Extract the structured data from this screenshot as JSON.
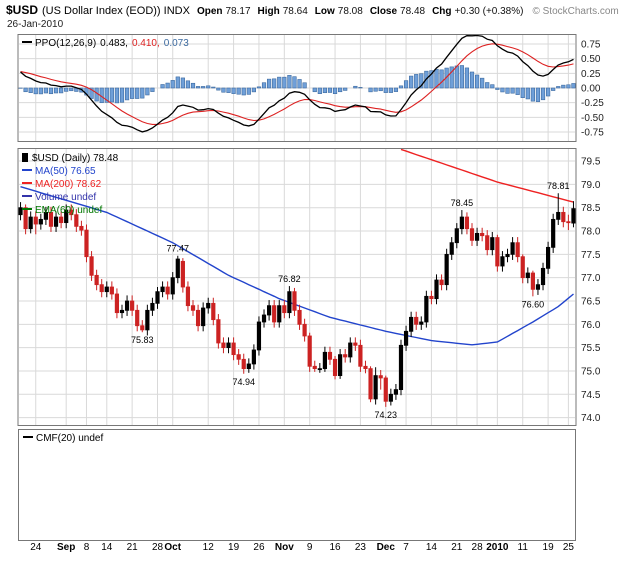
{
  "header": {
    "symbol": "$USD",
    "title_rest": "(US Dollar Index (EOD)) INDX",
    "date": "26-Jan-2010",
    "copyright": "© StockCharts.com",
    "quote": [
      {
        "label": "Open",
        "value": "78.17"
      },
      {
        "label": "High",
        "value": "78.64"
      },
      {
        "label": "Low",
        "value": "78.08"
      },
      {
        "label": "Close",
        "value": "78.48"
      },
      {
        "label": "Chg",
        "value": "+0.30 (+0.38%)"
      }
    ]
  },
  "ppo_panel": {
    "legend_parts": [
      {
        "text": "PPO(12,26,9)",
        "color": "#000000",
        "swatch": true
      },
      {
        "text": "0.483,",
        "color": "#000000"
      },
      {
        "text": "0.410,",
        "color": "#dd2222"
      },
      {
        "text": "0.073",
        "color": "#3c6aa0"
      }
    ],
    "y_labels": [
      "0.75",
      "0.50",
      "0.25",
      "0.00",
      "-0.25",
      "-0.50",
      "-0.75"
    ]
  },
  "price_panel": {
    "legend": [
      {
        "text": "$USD (Daily) 78.48",
        "color": "#000000",
        "swatch": "candle"
      },
      {
        "text": "MA(50) 76.65",
        "color": "#2244cc",
        "swatch": "line"
      },
      {
        "text": "MA(200) 78.62",
        "color": "#ee2222",
        "swatch": "line"
      },
      {
        "text": "Volume undef",
        "color": "#3333aa",
        "swatch": "line"
      },
      {
        "text": "EMA(60) undef",
        "color": "#007700",
        "swatch": "line"
      }
    ],
    "y_labels": [
      "79.5",
      "79.0",
      "78.5",
      "78.0",
      "77.5",
      "77.0",
      "76.5",
      "76.0",
      "75.5",
      "75.0",
      "74.5",
      "74.0"
    ]
  },
  "cmf_panel": {
    "legend": {
      "text": "CMF(20) undef",
      "color": "#000000"
    }
  },
  "x_axis": {
    "ticks": [
      {
        "label": "24",
        "index": 3
      },
      {
        "label": "Sep",
        "index": 9,
        "bold": true
      },
      {
        "label": "8",
        "index": 13
      },
      {
        "label": "14",
        "index": 17
      },
      {
        "label": "21",
        "index": 22
      },
      {
        "label": "28",
        "index": 27
      },
      {
        "label": "Oct",
        "index": 30,
        "bold": true
      },
      {
        "label": "12",
        "index": 37
      },
      {
        "label": "19",
        "index": 42
      },
      {
        "label": "26",
        "index": 47
      },
      {
        "label": "Nov",
        "index": 52,
        "bold": true
      },
      {
        "label": "9",
        "index": 57
      },
      {
        "label": "16",
        "index": 62
      },
      {
        "label": "23",
        "index": 67
      },
      {
        "label": "Dec",
        "index": 72,
        "bold": true
      },
      {
        "label": "7",
        "index": 76
      },
      {
        "label": "14",
        "index": 81
      },
      {
        "label": "21",
        "index": 86
      },
      {
        "label": "28",
        "index": 90
      },
      {
        "label": "2010",
        "index": 94,
        "bold": true
      },
      {
        "label": "11",
        "index": 99
      },
      {
        "label": "19",
        "index": 104
      },
      {
        "label": "25",
        "index": 108
      }
    ]
  },
  "colors": {
    "up_candle": "#000000",
    "down_candle": "#cc2222",
    "ma50": "#2244cc",
    "ma200": "#ee2222",
    "ppo_line": "#000000",
    "ppo_signal": "#dd2222",
    "hist_fill": "#6f9fd8",
    "hist_stroke": "#3c6aa0",
    "volume_legend": "#3333aa",
    "ema60_legend": "#007700",
    "grid": "#d9d9d9",
    "panel_border": "#777777",
    "axis_text": "#222222",
    "copyright_text": "#888888",
    "annotation_text": "#000000"
  },
  "chart_data": [
    {
      "id": "ppo",
      "type": "line",
      "title": "PPO(12,26,9)",
      "params": {
        "fast": 12,
        "slow": 26,
        "signal": 9
      },
      "note": "PPO line (black), signal line (red) and histogram (blue bars) are derived in the renderer from the candle closes of the price chart below",
      "visible_end_values": {
        "ppo": 0.483,
        "signal": 0.41,
        "histogram": 0.073
      },
      "ylim": [
        -0.92,
        0.92
      ],
      "yticks": [
        0.75,
        0.5,
        0.25,
        0,
        -0.25,
        -0.5,
        -0.75
      ],
      "legend_position": "top-left",
      "grid": true
    },
    {
      "id": "price",
      "type": "candlestick",
      "title": "$USD (Daily)",
      "last_close": 78.48,
      "ylim": [
        73.82,
        79.78
      ],
      "yticks": [
        79.5,
        79.0,
        78.5,
        78.0,
        77.5,
        77.0,
        76.5,
        76.0,
        75.5,
        75.0,
        74.5,
        74.0
      ],
      "grid": true,
      "legend_position": "top-left",
      "dates": [
        "08-19",
        "08-20",
        "08-21",
        "08-24",
        "08-25",
        "08-26",
        "08-27",
        "08-28",
        "08-31",
        "09-01",
        "09-02",
        "09-03",
        "09-04",
        "09-08",
        "09-09",
        "09-10",
        "09-11",
        "09-14",
        "09-15",
        "09-16",
        "09-17",
        "09-18",
        "09-21",
        "09-22",
        "09-23",
        "09-24",
        "09-25",
        "09-28",
        "09-29",
        "09-30",
        "10-01",
        "10-02",
        "10-05",
        "10-06",
        "10-07",
        "10-08",
        "10-09",
        "10-12",
        "10-13",
        "10-14",
        "10-15",
        "10-16",
        "10-19",
        "10-20",
        "10-21",
        "10-22",
        "10-23",
        "10-26",
        "10-27",
        "10-28",
        "10-29",
        "10-30",
        "11-02",
        "11-03",
        "11-04",
        "11-05",
        "11-06",
        "11-09",
        "11-10",
        "11-11",
        "11-12",
        "11-13",
        "11-16",
        "11-17",
        "11-18",
        "11-19",
        "11-20",
        "11-23",
        "11-24",
        "11-25",
        "11-27",
        "11-30",
        "12-01",
        "12-02",
        "12-03",
        "12-04",
        "12-07",
        "12-08",
        "12-09",
        "12-10",
        "12-11",
        "12-14",
        "12-15",
        "12-16",
        "12-17",
        "12-18",
        "12-21",
        "12-22",
        "12-23",
        "12-24",
        "12-28",
        "12-29",
        "12-30",
        "12-31",
        "01-04",
        "01-05",
        "01-06",
        "01-07",
        "01-08",
        "01-11",
        "01-12",
        "01-13",
        "01-14",
        "01-15",
        "01-19",
        "01-20",
        "01-21",
        "01-22",
        "01-25",
        "01-26"
      ],
      "ohlc": [
        [
          78.35,
          78.62,
          78.23,
          78.5
        ],
        [
          78.5,
          78.57,
          77.93,
          78.05
        ],
        [
          78.05,
          78.42,
          77.95,
          78.3
        ],
        [
          78.3,
          78.42,
          77.93,
          78.15
        ],
        [
          78.15,
          78.37,
          78.03,
          78.25
        ],
        [
          78.25,
          78.52,
          78.13,
          78.4
        ],
        [
          78.4,
          78.52,
          77.98,
          78.1
        ],
        [
          78.1,
          78.42,
          77.98,
          78.3
        ],
        [
          78.3,
          78.42,
          78.06,
          78.18
        ],
        [
          78.18,
          78.57,
          78.06,
          78.45
        ],
        [
          78.45,
          78.57,
          78.23,
          78.35
        ],
        [
          78.35,
          78.47,
          77.98,
          78.1
        ],
        [
          78.1,
          78.22,
          77.9,
          78.02
        ],
        [
          78.02,
          78.14,
          77.33,
          77.45
        ],
        [
          77.45,
          77.57,
          76.93,
          77.05
        ],
        [
          77.05,
          77.17,
          76.73,
          76.85
        ],
        [
          76.85,
          76.97,
          76.58,
          76.7
        ],
        [
          76.7,
          76.92,
          76.58,
          76.8
        ],
        [
          76.8,
          76.92,
          76.53,
          76.65
        ],
        [
          76.65,
          76.77,
          76.13,
          76.25
        ],
        [
          76.25,
          76.42,
          76.13,
          76.3
        ],
        [
          76.3,
          76.62,
          76.18,
          76.5
        ],
        [
          76.5,
          76.62,
          76.18,
          76.3
        ],
        [
          76.3,
          76.42,
          75.85,
          75.97
        ],
        [
          75.97,
          76.09,
          75.83,
          75.88
        ],
        [
          75.88,
          76.42,
          75.76,
          76.3
        ],
        [
          76.3,
          76.57,
          76.18,
          76.45
        ],
        [
          76.45,
          76.8,
          76.33,
          76.7
        ],
        [
          76.7,
          76.92,
          76.58,
          76.8
        ],
        [
          76.8,
          76.92,
          76.53,
          76.65
        ],
        [
          76.65,
          77.12,
          76.53,
          77.0
        ],
        [
          77.0,
          77.47,
          76.88,
          77.4
        ],
        [
          77.35,
          77.42,
          76.68,
          76.8
        ],
        [
          76.8,
          76.92,
          76.28,
          76.4
        ],
        [
          76.4,
          76.52,
          76.18,
          76.3
        ],
        [
          76.3,
          76.42,
          75.85,
          75.97
        ],
        [
          75.97,
          76.47,
          75.85,
          76.35
        ],
        [
          76.35,
          76.57,
          76.23,
          76.45
        ],
        [
          76.45,
          76.57,
          75.98,
          76.1
        ],
        [
          76.1,
          76.22,
          75.48,
          75.6
        ],
        [
          75.6,
          75.72,
          75.38,
          75.5
        ],
        [
          75.5,
          75.72,
          75.38,
          75.6
        ],
        [
          75.6,
          75.72,
          75.23,
          75.35
        ],
        [
          75.35,
          75.47,
          75.13,
          75.25
        ],
        [
          75.25,
          75.37,
          74.94,
          75.05
        ],
        [
          75.05,
          75.27,
          74.96,
          75.15
        ],
        [
          75.15,
          75.57,
          75.03,
          75.45
        ],
        [
          75.45,
          76.17,
          75.33,
          76.05
        ],
        [
          76.05,
          76.32,
          75.93,
          76.2
        ],
        [
          76.2,
          76.52,
          76.08,
          76.4
        ],
        [
          76.4,
          76.52,
          75.93,
          76.05
        ],
        [
          76.05,
          76.52,
          75.93,
          76.4
        ],
        [
          76.4,
          76.52,
          76.13,
          76.25
        ],
        [
          76.25,
          76.82,
          76.13,
          76.7
        ],
        [
          76.7,
          76.78,
          76.18,
          76.3
        ],
        [
          76.3,
          76.42,
          75.88,
          76.0
        ],
        [
          76.0,
          76.12,
          75.63,
          75.75
        ],
        [
          75.75,
          75.82,
          74.98,
          75.1
        ],
        [
          75.1,
          75.22,
          74.98,
          75.05
        ],
        [
          75.05,
          75.17,
          74.96,
          75.05
        ],
        [
          75.05,
          75.52,
          74.98,
          75.4
        ],
        [
          75.4,
          75.52,
          75.13,
          75.25
        ],
        [
          75.25,
          75.32,
          74.82,
          74.9
        ],
        [
          74.9,
          75.47,
          74.83,
          75.35
        ],
        [
          75.35,
          75.47,
          75.18,
          75.3
        ],
        [
          75.3,
          75.72,
          75.18,
          75.6
        ],
        [
          75.6,
          75.72,
          75.43,
          75.55
        ],
        [
          75.55,
          75.67,
          74.98,
          75.1
        ],
        [
          75.1,
          75.22,
          74.95,
          75.05
        ],
        [
          75.05,
          75.1,
          74.33,
          74.4
        ],
        [
          74.4,
          75.08,
          74.28,
          74.9
        ],
        [
          74.9,
          75.02,
          74.6,
          74.85
        ],
        [
          74.85,
          74.9,
          74.23,
          74.35
        ],
        [
          74.35,
          74.62,
          74.26,
          74.5
        ],
        [
          74.5,
          74.72,
          74.38,
          74.6
        ],
        [
          74.6,
          75.67,
          74.48,
          75.55
        ],
        [
          75.55,
          75.97,
          75.43,
          75.85
        ],
        [
          75.85,
          76.27,
          75.73,
          76.15
        ],
        [
          76.15,
          76.27,
          75.88,
          76.0
        ],
        [
          76.0,
          76.17,
          75.88,
          76.05
        ],
        [
          76.05,
          76.72,
          75.93,
          76.6
        ],
        [
          76.6,
          76.72,
          76.43,
          76.55
        ],
        [
          76.55,
          77.07,
          76.43,
          76.95
        ],
        [
          76.95,
          77.07,
          76.73,
          76.85
        ],
        [
          76.85,
          77.62,
          76.73,
          77.5
        ],
        [
          77.5,
          77.87,
          77.38,
          77.75
        ],
        [
          77.75,
          78.17,
          77.63,
          78.05
        ],
        [
          78.05,
          78.45,
          77.93,
          78.3
        ],
        [
          78.3,
          78.4,
          77.93,
          78.05
        ],
        [
          78.05,
          78.17,
          77.68,
          77.8
        ],
        [
          77.8,
          78.07,
          77.68,
          77.95
        ],
        [
          77.95,
          78.07,
          77.78,
          77.9
        ],
        [
          77.9,
          78.02,
          77.48,
          77.6
        ],
        [
          77.6,
          77.98,
          77.48,
          77.86
        ],
        [
          77.86,
          77.92,
          77.13,
          77.25
        ],
        [
          77.25,
          77.57,
          77.13,
          77.45
        ],
        [
          77.45,
          77.62,
          77.33,
          77.5
        ],
        [
          77.5,
          77.87,
          77.38,
          77.75
        ],
        [
          77.75,
          77.87,
          77.33,
          77.45
        ],
        [
          77.45,
          77.5,
          76.88,
          77.0
        ],
        [
          77.0,
          77.22,
          76.88,
          77.1
        ],
        [
          77.1,
          77.15,
          76.6,
          76.75
        ],
        [
          76.75,
          76.97,
          76.63,
          76.85
        ],
        [
          76.85,
          77.32,
          76.73,
          77.2
        ],
        [
          77.2,
          77.77,
          77.08,
          77.65
        ],
        [
          77.65,
          78.37,
          77.53,
          78.25
        ],
        [
          78.25,
          78.81,
          78.13,
          78.4
        ],
        [
          78.4,
          78.52,
          78.08,
          78.2
        ],
        [
          78.2,
          78.35,
          78.02,
          78.18
        ],
        [
          78.17,
          78.64,
          78.08,
          78.48
        ]
      ],
      "overlays": [
        {
          "name": "MA(50)",
          "last": 76.65,
          "color_key": "ma50",
          "anchors": [
            [
              0,
              78.95
            ],
            [
              17,
              78.4
            ],
            [
              30,
              77.75
            ],
            [
              41,
              77.05
            ],
            [
              51,
              76.55
            ],
            [
              61,
              76.15
            ],
            [
              72,
              75.85
            ],
            [
              81,
              75.65
            ],
            [
              89,
              75.56
            ],
            [
              94,
              75.62
            ],
            [
              101,
              76.05
            ],
            [
              106,
              76.38
            ],
            [
              109,
              76.65
            ]
          ]
        },
        {
          "name": "MA(200)",
          "last": 78.62,
          "color_key": "ma200",
          "anchors": [
            [
              75,
              79.75
            ],
            [
              94,
              79.05
            ],
            [
              109,
              78.62
            ]
          ]
        }
      ],
      "annotations": [
        {
          "text": "75.83",
          "index": 24,
          "pos": "below"
        },
        {
          "text": "77.47",
          "index": 31,
          "pos": "above"
        },
        {
          "text": "74.94",
          "index": 44,
          "pos": "below"
        },
        {
          "text": "76.82",
          "index": 53,
          "pos": "above"
        },
        {
          "text": "74.23",
          "index": 72,
          "pos": "below"
        },
        {
          "text": "78.45",
          "index": 87,
          "pos": "above"
        },
        {
          "text": "76.60",
          "index": 101,
          "pos": "below"
        },
        {
          "text": "78.81",
          "index": 106,
          "pos": "above"
        }
      ]
    },
    {
      "id": "cmf",
      "type": "line",
      "title": "CMF(20)",
      "values": [],
      "note": "undef — indicator panel is empty"
    }
  ]
}
